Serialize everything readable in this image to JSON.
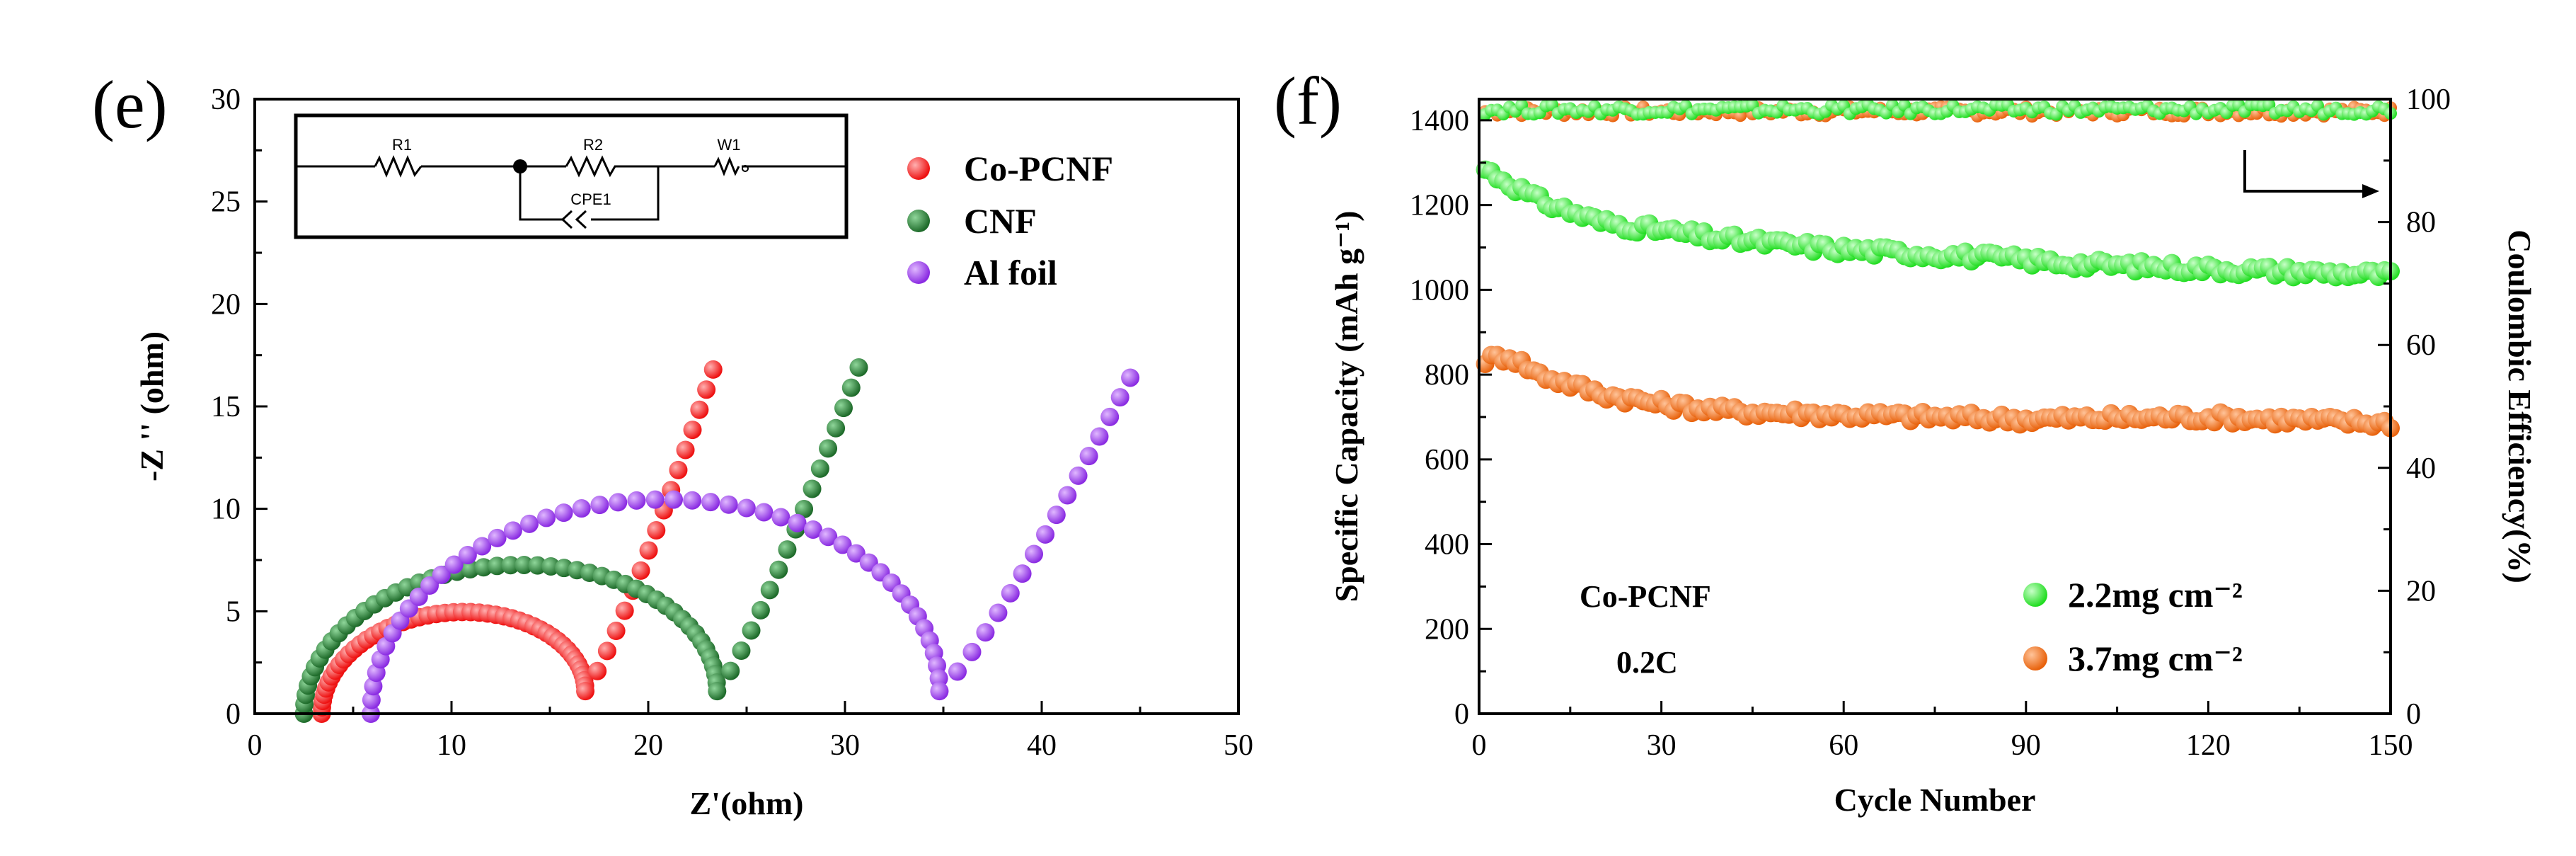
{
  "panel_e": {
    "label": "(e)"
  },
  "panel_f": {
    "label": "(f)"
  },
  "circuit": {
    "r1": "R1",
    "r2": "R2",
    "w1": "W1",
    "cpe": "CPE1"
  },
  "chart_data": [
    {
      "type": "scatter",
      "xlabel": "Z'(ohm)",
      "ylabel": "-Z '' (ohm)",
      "xlim": [
        0,
        50
      ],
      "ylim": [
        0,
        30
      ],
      "xticks": [
        "0",
        "10",
        "20",
        "30",
        "40",
        "50"
      ],
      "yticks": [
        "0",
        "5",
        "10",
        "15",
        "20",
        "25",
        "30"
      ],
      "legend_position": "top-right",
      "series": [
        {
          "name": "Co-PCNF",
          "color": "#ee1111",
          "semicircle": {
            "start": 3.4,
            "end": 16.8,
            "height": 4.4
          },
          "tail_end": [
            23.3,
            16.8
          ]
        },
        {
          "name": "CNF",
          "color": "#1e6b2a",
          "semicircle": {
            "start": 2.5,
            "end": 23.5,
            "height": 6.7
          },
          "tail_end": [
            30.7,
            16.9
          ]
        },
        {
          "name": "Al foil",
          "color": "#8a2be2",
          "semicircle": {
            "start": 5.9,
            "end": 34.8,
            "height": 9.9
          },
          "tail_end": [
            44.5,
            16.4
          ]
        }
      ]
    },
    {
      "type": "scatter",
      "xlabel": "Cycle Number",
      "ylabel": "Specific Capacity (mAh g⁻¹)",
      "y2label": "Coulombic Efficiency(%)",
      "xlim": [
        0,
        150
      ],
      "ylim": [
        0,
        1450
      ],
      "y2lim": [
        0,
        100
      ],
      "xticks": [
        "0",
        "30",
        "60",
        "90",
        "120",
        "150"
      ],
      "yticks": [
        "0",
        "200",
        "400",
        "600",
        "800",
        "1000",
        "1200",
        "1400"
      ],
      "y2ticks": [
        "0",
        "20",
        "40",
        "60",
        "80",
        "100"
      ],
      "annotations": [
        "Co-PCNF",
        "0.2C"
      ],
      "legend_position": "bottom-right",
      "series": [
        {
          "name": "2.2mg cm⁻²",
          "color": "#22dd22",
          "capacity": [
            [
              1,
              1285
            ],
            [
              10,
              1210
            ],
            [
              20,
              1160
            ],
            [
              30,
              1140
            ],
            [
              40,
              1120
            ],
            [
              60,
              1095
            ],
            [
              80,
              1080
            ],
            [
              100,
              1060
            ],
            [
              120,
              1050
            ],
            [
              150,
              1035
            ]
          ],
          "efficiency": 98.3
        },
        {
          "name": "3.7mg cm⁻²",
          "color": "#e8620c",
          "capacity": [
            [
              1,
              835
            ],
            [
              5,
              845
            ],
            [
              10,
              800
            ],
            [
              20,
              755
            ],
            [
              30,
              730
            ],
            [
              40,
              715
            ],
            [
              60,
              705
            ],
            [
              90,
              695
            ],
            [
              120,
              700
            ],
            [
              150,
              685
            ]
          ],
          "efficiency": 98.0
        }
      ]
    }
  ]
}
